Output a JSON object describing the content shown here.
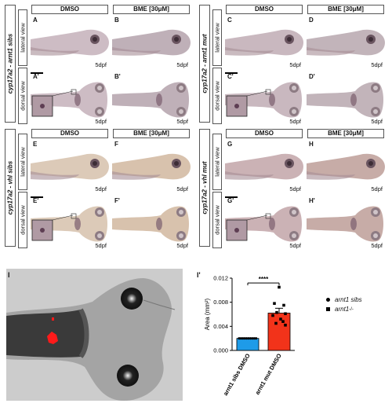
{
  "columns": {
    "left": "DMSO",
    "right": "BME [30μM]"
  },
  "views": {
    "lateral": "lateral view",
    "dorsal": "dorsal view"
  },
  "stage": "5dpf",
  "quads": [
    {
      "genotype": "cyp17a2 - arnt1 sibs",
      "labels": [
        "A",
        "B",
        "A'",
        "B'"
      ]
    },
    {
      "genotype": "cyp17a2 - arnt1 mut",
      "labels": [
        "C",
        "D",
        "C'",
        "D'"
      ]
    },
    {
      "genotype": "cyp17a2 - vhl sibs",
      "labels": [
        "E",
        "F",
        "E'",
        "F'"
      ]
    },
    {
      "genotype": "cyp17a2 - vhl mut",
      "labels": [
        "G",
        "H",
        "G'",
        "H'"
      ]
    }
  ],
  "panel_i_label": "I",
  "panel_ip_label": "I'",
  "colors": {
    "sibs_bar": "#1e9be8",
    "mut_bar": "#f2331a",
    "stain": "#6b4a6a",
    "highlight": "#ff1a1a"
  },
  "chart_data": {
    "type": "bar",
    "categories": [
      "arnt1 sibs DMSO",
      "arnt1 mut DMSO"
    ],
    "values": [
      0.002,
      0.0062
    ],
    "errors": [
      5e-05,
      0.0008
    ],
    "points": [
      [
        0.002,
        0.002,
        0.002,
        0.002,
        0.002,
        0.002,
        0.002,
        0.002,
        0.002,
        0.002
      ],
      [
        0.0105,
        0.0078,
        0.0075,
        0.0063,
        0.0061,
        0.0058,
        0.0052,
        0.0048,
        0.0045,
        0.0042
      ]
    ],
    "ylabel": "Area (mm²)",
    "yticks": [
      "0.000",
      "0.004",
      "0.008",
      "0.012"
    ],
    "ylim": [
      0,
      0.012
    ],
    "significance": "****",
    "legend": {
      "sibs": "arnt1 sibs",
      "mut": "arnt1",
      "mut_sup": "-/-"
    }
  }
}
